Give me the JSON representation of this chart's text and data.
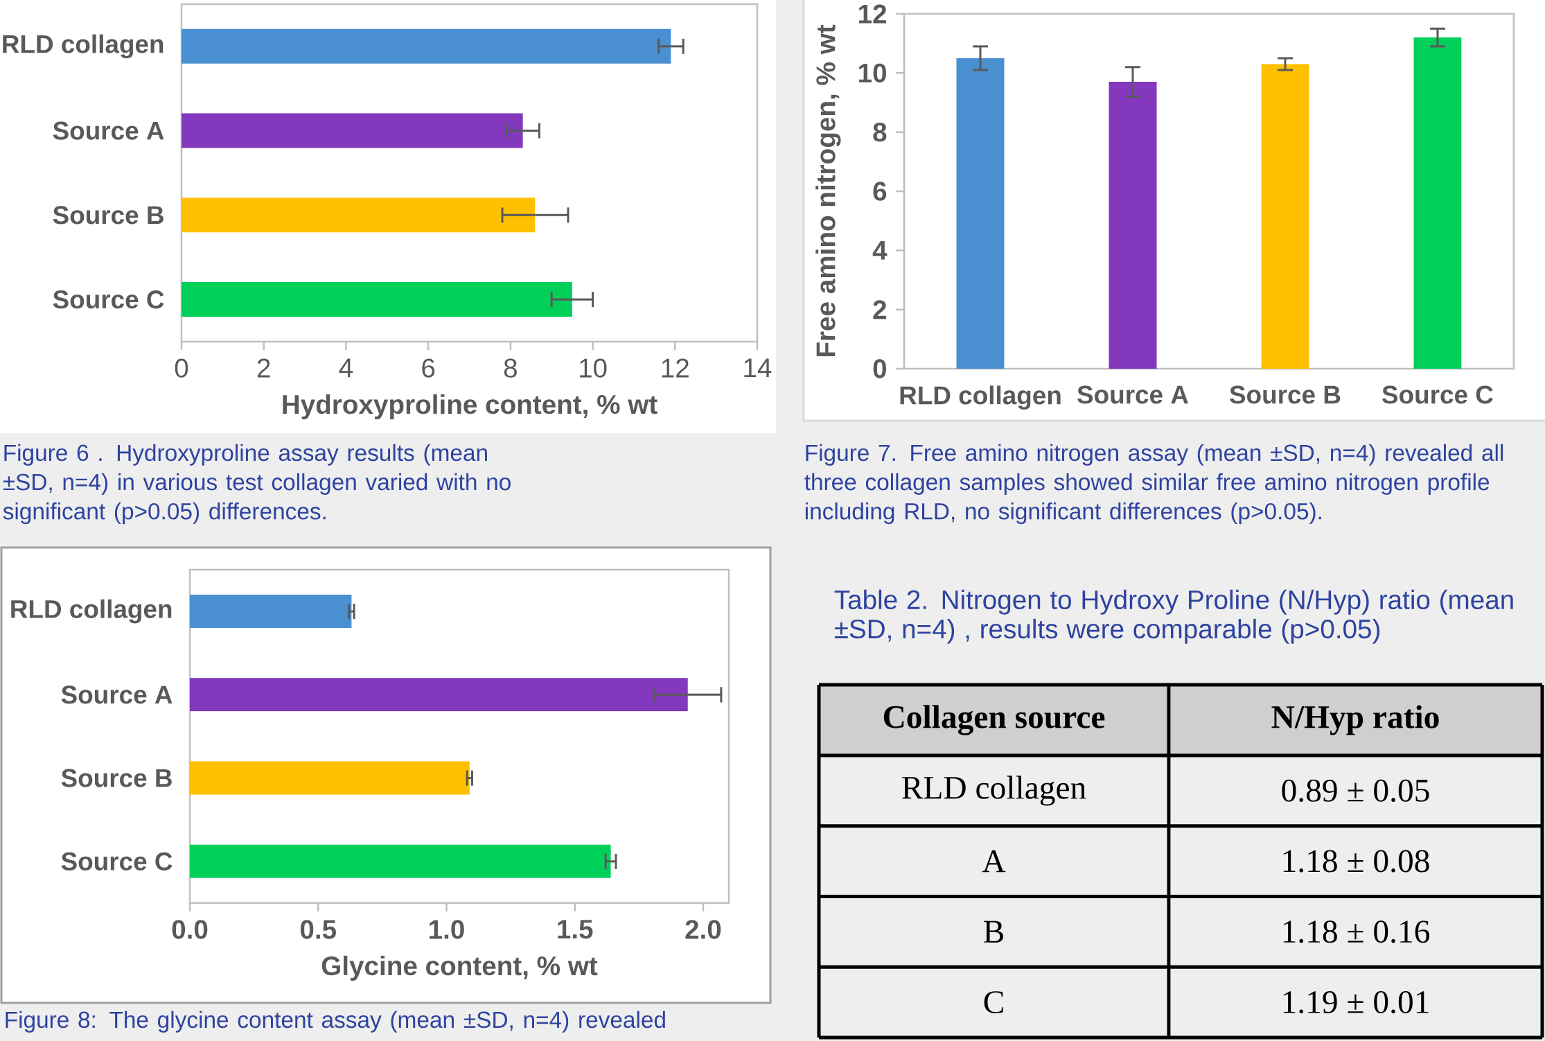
{
  "chart_data": [
    {
      "type": "bar",
      "orientation": "horizontal",
      "categories": [
        "RLD collagen",
        "Source A",
        "Source B",
        "Source C"
      ],
      "values": [
        11.9,
        8.3,
        8.6,
        9.5
      ],
      "errors": [
        0.3,
        0.4,
        0.8,
        0.5
      ],
      "colors": [
        "#4a8fd1",
        "#8338be",
        "#ffc000",
        "#00d05a"
      ],
      "xlabel": "Hydroxyproline content, % wt",
      "xlim": [
        0,
        14
      ],
      "xticks": [
        0,
        2,
        4,
        6,
        8,
        10,
        12,
        14
      ],
      "annotations": [
        "Figure 6 . Hydroxyproline assay results (mean ±SD, n=4) in various test collagen varied with no significant (p>0.05) differences."
      ]
    },
    {
      "type": "bar",
      "categories": [
        "RLD collagen",
        "Source A",
        "Source B",
        "Source C"
      ],
      "values": [
        10.5,
        9.7,
        10.3,
        11.2
      ],
      "errors": [
        0.4,
        0.5,
        0.2,
        0.3
      ],
      "colors": [
        "#4a8fd1",
        "#8338be",
        "#ffc000",
        "#00d05a"
      ],
      "ylabel": "Free amino nitrogen, % wt",
      "ylim": [
        0,
        12
      ],
      "yticks": [
        0,
        2,
        4,
        6,
        8,
        10,
        12
      ],
      "annotations": [
        "Figure 7. Free amino nitrogen assay (mean ±SD, n=4) revealed all three collagen samples showed similar free amino nitrogen profile including RLD, no significant differences (p>0.05)."
      ]
    },
    {
      "type": "bar",
      "orientation": "horizontal",
      "categories": [
        "RLD collagen",
        "Source A",
        "Source B",
        "Source C"
      ],
      "values": [
        0.63,
        1.94,
        1.09,
        1.64
      ],
      "errors": [
        0.01,
        0.13,
        0.01,
        0.02
      ],
      "colors": [
        "#4a8fd1",
        "#8338be",
        "#ffc000",
        "#00d05a"
      ],
      "xlabel": "Glycine content, % wt",
      "xlim": [
        0,
        2.1
      ],
      "xticks": [
        {
          "value": 0,
          "label": "0.0"
        },
        0.5,
        {
          "value": 1,
          "label": "1.0"
        },
        1.5,
        {
          "value": 2,
          "label": "2.0"
        }
      ],
      "annotations": [
        "Figure 8: The glycine content assay (mean ±SD, n=4) revealed"
      ]
    },
    {
      "type": "other",
      "title": "Table 2. Nitrogen to Hydroxy Proline (N/Hyp) ratio (mean ±SD, n=4) , results were comparable (p>0.05)",
      "annotations": [
        "Collagen source",
        "N/Hyp ratio",
        "RLD collagen",
        "0.89 ± 0.05",
        "A",
        "1.18 ± 0.08",
        "B",
        "1.18 ± 0.16",
        "C",
        "1.19 ± 0.01"
      ]
    }
  ]
}
